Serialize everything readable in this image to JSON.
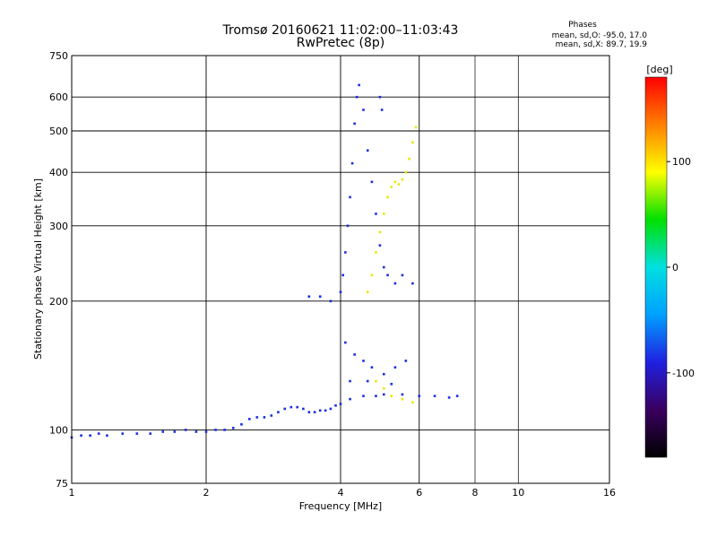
{
  "chart_data": {
    "type": "scatter",
    "title": "Tromsø 20160621 11:02:00–11:03:43",
    "subtitle": "RwPretec (8p)",
    "xlabel": "Frequency [MHz]",
    "ylabel": "Stationary phase Virtual Height [km]",
    "xscale": "log",
    "yscale": "log",
    "xlim": [
      1,
      16
    ],
    "ylim": [
      75,
      750
    ],
    "xticks": [
      "1",
      "2",
      "4",
      "6",
      "8",
      "10",
      "16"
    ],
    "yticks": [
      "75",
      "100",
      "200",
      "300",
      "400",
      "500",
      "600",
      "750"
    ],
    "grid": true,
    "colorbar": {
      "label": "[deg]",
      "range": [
        -180,
        180
      ],
      "ticks": [
        "100",
        "0",
        "-100"
      ],
      "colors": [
        "#000000",
        "#3a0060",
        "#2020e0",
        "#00a0ff",
        "#00e0e0",
        "#00e000",
        "#ffff00",
        "#ff8000",
        "#ff0000"
      ]
    },
    "phase_stats": {
      "heading": "Phases",
      "line1": "mean, sd,O: -95.0, 17.0",
      "line2": "mean, sd,X:  89.7, 19.9"
    },
    "series": [
      {
        "name": "O",
        "color": "#1a2ee0",
        "points": [
          [
            1.0,
            96
          ],
          [
            1.05,
            97
          ],
          [
            1.1,
            97
          ],
          [
            1.15,
            98
          ],
          [
            1.2,
            97
          ],
          [
            1.3,
            98
          ],
          [
            1.4,
            98
          ],
          [
            1.5,
            98
          ],
          [
            1.6,
            99
          ],
          [
            1.7,
            99
          ],
          [
            1.8,
            100
          ],
          [
            1.9,
            99
          ],
          [
            2.0,
            99
          ],
          [
            2.1,
            100
          ],
          [
            2.2,
            100
          ],
          [
            2.3,
            101
          ],
          [
            2.4,
            103
          ],
          [
            2.5,
            106
          ],
          [
            2.6,
            107
          ],
          [
            2.7,
            107
          ],
          [
            2.8,
            108
          ],
          [
            2.9,
            110
          ],
          [
            3.0,
            112
          ],
          [
            3.1,
            113
          ],
          [
            3.2,
            113
          ],
          [
            3.3,
            112
          ],
          [
            3.4,
            110
          ],
          [
            3.5,
            110
          ],
          [
            3.6,
            111
          ],
          [
            3.7,
            111
          ],
          [
            3.8,
            112
          ],
          [
            3.9,
            114
          ],
          [
            4.0,
            115
          ],
          [
            4.2,
            118
          ],
          [
            4.5,
            120
          ],
          [
            4.8,
            120
          ],
          [
            5.0,
            121
          ],
          [
            5.5,
            121
          ],
          [
            6.0,
            120
          ],
          [
            6.5,
            120
          ],
          [
            7.0,
            119
          ],
          [
            7.3,
            120
          ],
          [
            3.4,
            205
          ],
          [
            3.6,
            205
          ],
          [
            3.8,
            200
          ],
          [
            4.0,
            210
          ],
          [
            4.05,
            230
          ],
          [
            4.1,
            260
          ],
          [
            4.15,
            300
          ],
          [
            4.2,
            350
          ],
          [
            4.25,
            420
          ],
          [
            4.3,
            520
          ],
          [
            4.35,
            600
          ],
          [
            4.4,
            640
          ],
          [
            4.5,
            560
          ],
          [
            4.6,
            450
          ],
          [
            4.7,
            380
          ],
          [
            4.8,
            320
          ],
          [
            4.9,
            270
          ],
          [
            5.0,
            240
          ],
          [
            5.1,
            230
          ],
          [
            5.3,
            220
          ],
          [
            5.5,
            230
          ],
          [
            5.8,
            220
          ],
          [
            4.9,
            600
          ],
          [
            4.95,
            560
          ],
          [
            4.1,
            160
          ],
          [
            4.3,
            150
          ],
          [
            4.5,
            145
          ],
          [
            4.7,
            140
          ],
          [
            5.0,
            135
          ],
          [
            5.3,
            140
          ],
          [
            5.6,
            145
          ],
          [
            4.2,
            130
          ],
          [
            4.6,
            130
          ],
          [
            5.2,
            128
          ]
        ]
      },
      {
        "name": "X",
        "color": "#e8e800",
        "points": [
          [
            4.6,
            210
          ],
          [
            4.7,
            230
          ],
          [
            4.8,
            260
          ],
          [
            4.9,
            290
          ],
          [
            5.0,
            320
          ],
          [
            5.1,
            350
          ],
          [
            5.2,
            370
          ],
          [
            5.3,
            380
          ],
          [
            5.4,
            375
          ],
          [
            5.5,
            385
          ],
          [
            5.6,
            400
          ],
          [
            5.7,
            430
          ],
          [
            5.8,
            470
          ],
          [
            5.9,
            510
          ],
          [
            4.8,
            130
          ],
          [
            5.0,
            125
          ],
          [
            5.2,
            120
          ],
          [
            5.5,
            118
          ],
          [
            5.8,
            116
          ]
        ]
      }
    ]
  }
}
